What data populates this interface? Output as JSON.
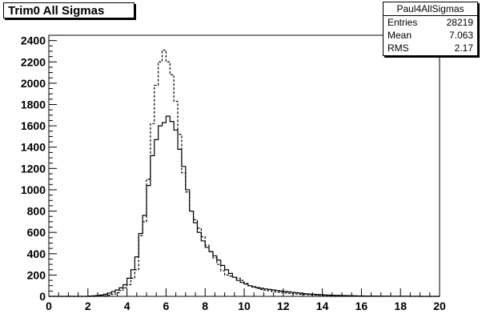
{
  "title": "Trim0 All Sigmas",
  "stats": {
    "name": "Paul4AllSigmas",
    "rows": [
      {
        "label": "Entries",
        "value": "28219"
      },
      {
        "label": "Mean",
        "value": "7.063"
      },
      {
        "label": "RMS",
        "value": "2.17"
      }
    ]
  },
  "chart_data": {
    "type": "bar",
    "xlim": [
      0,
      20
    ],
    "ylim": [
      0,
      2450
    ],
    "x_ticks": [
      "0",
      "2",
      "4",
      "6",
      "8",
      "10",
      "12",
      "14",
      "16",
      "18",
      "20"
    ],
    "y_ticks": [
      "0",
      "200",
      "400",
      "600",
      "800",
      "1000",
      "1200",
      "1400",
      "1600",
      "1800",
      "2000",
      "2200",
      "2400"
    ],
    "bin_width": 0.2,
    "series": [
      {
        "style": "solid",
        "bin_edges_start": 0,
        "values": [
          0,
          0,
          0,
          0,
          0,
          0,
          0,
          0,
          0,
          0,
          3,
          5,
          8,
          12,
          20,
          30,
          45,
          60,
          80,
          110,
          170,
          250,
          370,
          590,
          760,
          1040,
          1320,
          1470,
          1600,
          1630,
          1690,
          1640,
          1560,
          1380,
          1220,
          1000,
          800,
          690,
          600,
          520,
          460,
          420,
          380,
          340,
          290,
          250,
          215,
          180,
          150,
          130,
          115,
          100,
          90,
          82,
          76,
          70,
          65,
          60,
          55,
          50,
          46,
          42,
          38,
          34,
          30,
          26,
          23,
          20,
          18,
          16,
          14,
          12,
          11,
          10,
          9,
          8,
          7,
          6,
          5,
          4,
          4,
          3,
          3,
          3,
          2,
          2,
          2,
          1,
          1,
          1,
          1,
          1,
          1,
          1,
          1,
          0,
          0,
          0,
          0,
          0
        ]
      },
      {
        "style": "dashed",
        "bin_edges_start": 0,
        "values": [
          0,
          0,
          0,
          0,
          0,
          0,
          0,
          0,
          0,
          0,
          0,
          0,
          1,
          3,
          6,
          10,
          20,
          35,
          55,
          80,
          110,
          170,
          250,
          570,
          700,
          1100,
          1620,
          1980,
          2200,
          2310,
          2200,
          2080,
          1830,
          1520,
          1160,
          980,
          800,
          720,
          640,
          560,
          480,
          420,
          360,
          300,
          240,
          200,
          190,
          180,
          170,
          150,
          120,
          100,
          85,
          75,
          65,
          58,
          52,
          46,
          40,
          36,
          32,
          28,
          25,
          22,
          20,
          18,
          16,
          14,
          12,
          11,
          10,
          9,
          8,
          7,
          6,
          5,
          5,
          4,
          4,
          3,
          3,
          2,
          2,
          2,
          2,
          1,
          1,
          1,
          1,
          1,
          1,
          1,
          0,
          0,
          0,
          0,
          0,
          0,
          0,
          0
        ]
      }
    ]
  }
}
